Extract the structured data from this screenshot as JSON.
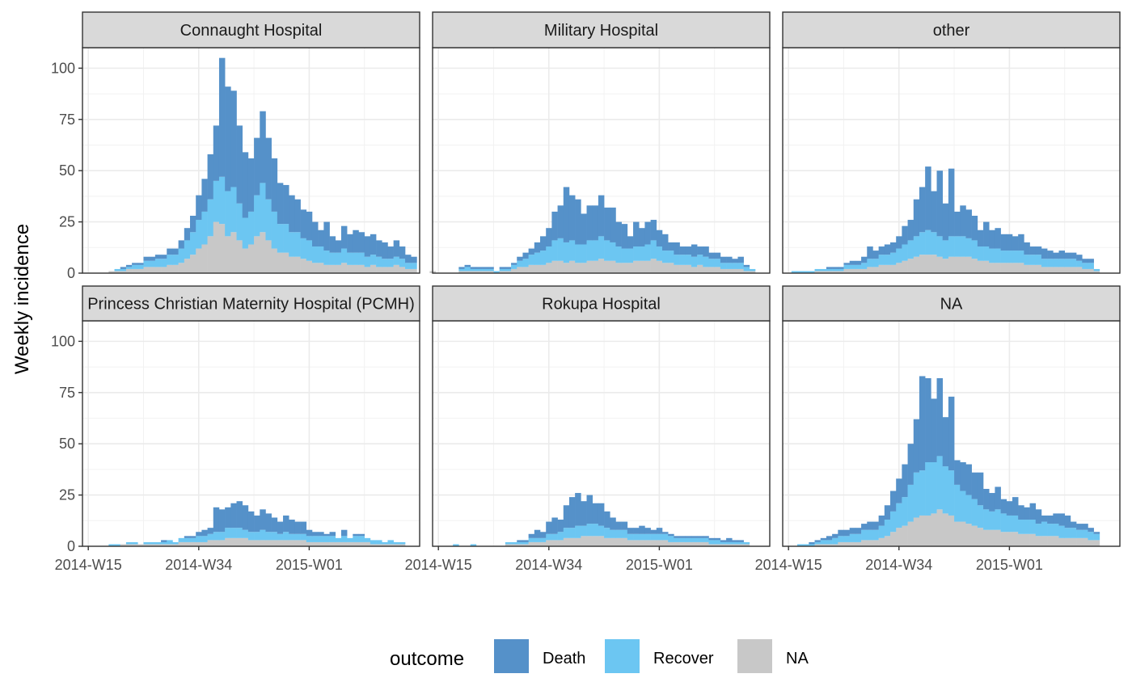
{
  "chart_data": {
    "type": "bar",
    "stacked": true,
    "ylabel": "Weekly incidence",
    "ylim": [
      0,
      110
    ],
    "y_ticks": [
      0,
      25,
      50,
      75,
      100
    ],
    "x_tick_labels": [
      "2014-W15",
      "2014-W34",
      "2015-W01"
    ],
    "x_tick_weeks": [
      0,
      19,
      38
    ],
    "x_range_weeks": [
      -1,
      57
    ],
    "grid": true,
    "legend": {
      "title": "outcome",
      "position": "bottom",
      "entries": [
        "Death",
        "Recover",
        "NA"
      ]
    },
    "colors": {
      "Death": "#5591C9",
      "Recover": "#6CC6F2",
      "NA": "#C8C8C8"
    },
    "series_names": [
      "Death",
      "Recover",
      "NA"
    ],
    "panels": [
      {
        "title": "Connaught Hospital",
        "start_week": 1,
        "NA": [
          0,
          0,
          0,
          1,
          1,
          1,
          2,
          2,
          2,
          3,
          3,
          3,
          3,
          4,
          4,
          5,
          7,
          9,
          12,
          14,
          18,
          25,
          24,
          18,
          20,
          16,
          12,
          14,
          18,
          20,
          16,
          12,
          10,
          10,
          8,
          8,
          7,
          6,
          5,
          5,
          4,
          4,
          4,
          5,
          4,
          4,
          4,
          3,
          4,
          3,
          3,
          3,
          4,
          3,
          2,
          2
        ],
        "Recover": [
          0,
          0,
          0,
          0,
          1,
          1,
          1,
          2,
          2,
          3,
          3,
          4,
          4,
          5,
          5,
          7,
          9,
          11,
          14,
          16,
          18,
          20,
          23,
          22,
          22,
          18,
          15,
          16,
          20,
          24,
          20,
          18,
          14,
          14,
          12,
          12,
          10,
          10,
          8,
          8,
          7,
          6,
          6,
          7,
          6,
          6,
          6,
          5,
          5,
          5,
          4,
          4,
          4,
          4,
          3,
          3
        ],
        "Death": [
          0,
          0,
          0,
          0,
          0,
          1,
          1,
          1,
          1,
          2,
          2,
          2,
          2,
          3,
          3,
          4,
          6,
          8,
          12,
          16,
          22,
          27,
          58,
          51,
          47,
          38,
          32,
          26,
          28,
          35,
          30,
          26,
          20,
          19,
          18,
          16,
          14,
          14,
          12,
          8,
          14,
          8,
          6,
          11,
          9,
          11,
          10,
          10,
          10,
          8,
          8,
          6,
          8,
          6,
          4,
          3
        ]
      },
      {
        "title": "Military Hospital",
        "start_week": -1,
        "NA": [
          1,
          0,
          0,
          0,
          0,
          1,
          1,
          1,
          1,
          1,
          1,
          0,
          1,
          1,
          2,
          3,
          3,
          4,
          4,
          4,
          5,
          6,
          6,
          5,
          6,
          5,
          5,
          6,
          6,
          7,
          6,
          6,
          5,
          5,
          5,
          6,
          6,
          6,
          7,
          6,
          5,
          5,
          4,
          4,
          4,
          3,
          4,
          3,
          3,
          3,
          2,
          2,
          2,
          2,
          1,
          1
        ],
        "Recover": [
          0,
          0,
          0,
          0,
          0,
          1,
          2,
          1,
          1,
          1,
          1,
          1,
          1,
          1,
          2,
          3,
          4,
          5,
          6,
          7,
          8,
          10,
          11,
          10,
          10,
          9,
          9,
          10,
          10,
          11,
          10,
          9,
          8,
          7,
          7,
          7,
          7,
          8,
          9,
          7,
          6,
          6,
          5,
          5,
          5,
          5,
          5,
          5,
          4,
          4,
          3,
          3,
          3,
          3,
          2,
          1
        ],
        "Death": [
          0,
          0,
          0,
          0,
          0,
          1,
          1,
          1,
          1,
          1,
          1,
          0,
          1,
          1,
          1,
          2,
          3,
          3,
          5,
          7,
          9,
          14,
          16,
          27,
          22,
          22,
          15,
          17,
          17,
          20,
          16,
          17,
          12,
          12,
          6,
          12,
          9,
          11,
          10,
          8,
          8,
          4,
          6,
          4,
          4,
          6,
          4,
          5,
          3,
          3,
          3,
          3,
          2,
          3,
          1,
          0
        ]
      },
      {
        "title": "other",
        "start_week": 1,
        "NA": [
          0,
          0,
          0,
          0,
          1,
          1,
          1,
          1,
          1,
          2,
          2,
          2,
          2,
          3,
          3,
          4,
          4,
          4,
          5,
          6,
          7,
          8,
          9,
          9,
          9,
          8,
          7,
          8,
          8,
          8,
          8,
          7,
          6,
          6,
          5,
          5,
          5,
          5,
          5,
          5,
          4,
          4,
          4,
          3,
          3,
          3,
          3,
          3,
          3,
          3,
          2,
          2,
          1
        ],
        "Recover": [
          1,
          1,
          1,
          1,
          1,
          1,
          1,
          1,
          1,
          2,
          2,
          2,
          3,
          4,
          4,
          5,
          5,
          6,
          7,
          8,
          9,
          10,
          11,
          12,
          11,
          10,
          9,
          10,
          10,
          10,
          9,
          9,
          7,
          7,
          7,
          7,
          6,
          6,
          6,
          6,
          5,
          5,
          5,
          4,
          4,
          4,
          4,
          4,
          4,
          3,
          3,
          3,
          1
        ],
        "Death": [
          0,
          0,
          0,
          0,
          0,
          0,
          1,
          1,
          1,
          1,
          2,
          2,
          3,
          6,
          4,
          4,
          5,
          5,
          6,
          9,
          10,
          18,
          22,
          31,
          20,
          32,
          18,
          33,
          12,
          15,
          14,
          12,
          8,
          12,
          9,
          10,
          8,
          8,
          7,
          8,
          6,
          4,
          4,
          5,
          4,
          3,
          4,
          3,
          3,
          3,
          2,
          2,
          0
        ]
      },
      {
        "title": "Princess Christian Maternity Hospital (PCMH)",
        "start_week": 1,
        "NA": [
          0,
          0,
          0,
          0,
          0,
          1,
          1,
          1,
          1,
          1,
          1,
          1,
          1,
          1,
          1,
          2,
          2,
          2,
          2,
          2,
          3,
          3,
          3,
          4,
          4,
          4,
          4,
          3,
          3,
          3,
          3,
          3,
          3,
          3,
          3,
          3,
          3,
          2,
          2,
          2,
          2,
          2,
          2,
          2,
          2,
          2,
          2,
          2,
          1,
          1,
          1,
          1,
          1,
          1
        ],
        "Recover": [
          0,
          0,
          0,
          1,
          1,
          0,
          1,
          1,
          0,
          1,
          1,
          1,
          1,
          2,
          1,
          2,
          2,
          2,
          3,
          3,
          3,
          4,
          4,
          5,
          5,
          5,
          4,
          4,
          4,
          5,
          4,
          4,
          3,
          4,
          3,
          3,
          3,
          3,
          3,
          3,
          3,
          3,
          2,
          3,
          2,
          3,
          3,
          2,
          2,
          2,
          1,
          2,
          1,
          1
        ],
        "Death": [
          0,
          0,
          0,
          0,
          0,
          0,
          0,
          0,
          0,
          0,
          0,
          0,
          1,
          0,
          0,
          0,
          1,
          1,
          2,
          3,
          3,
          12,
          11,
          10,
          12,
          13,
          12,
          10,
          8,
          10,
          9,
          7,
          6,
          8,
          7,
          6,
          6,
          3,
          2,
          2,
          1,
          2,
          0,
          3,
          0,
          1,
          1,
          0,
          0,
          0,
          0,
          0,
          0,
          0
        ]
      },
      {
        "title": "Rokupa Hospital",
        "start_week": 1,
        "NA": [
          0,
          0,
          0,
          0,
          0,
          0,
          0,
          0,
          0,
          0,
          0,
          1,
          1,
          1,
          1,
          2,
          2,
          2,
          3,
          3,
          3,
          4,
          4,
          4,
          5,
          5,
          5,
          5,
          4,
          4,
          4,
          4,
          3,
          3,
          3,
          3,
          3,
          3,
          3,
          2,
          2,
          2,
          2,
          2,
          2,
          2,
          1,
          1,
          1,
          1,
          1,
          1,
          1
        ],
        "Recover": [
          0,
          0,
          1,
          0,
          0,
          1,
          0,
          0,
          0,
          0,
          0,
          1,
          1,
          1,
          1,
          2,
          2,
          2,
          3,
          3,
          4,
          5,
          5,
          6,
          5,
          6,
          6,
          5,
          5,
          4,
          4,
          4,
          3,
          3,
          3,
          3,
          3,
          3,
          3,
          3,
          2,
          2,
          2,
          2,
          2,
          2,
          2,
          2,
          1,
          1,
          1,
          1,
          1
        ],
        "Death": [
          0,
          0,
          0,
          0,
          0,
          0,
          0,
          0,
          0,
          0,
          0,
          0,
          0,
          1,
          1,
          2,
          4,
          3,
          6,
          8,
          6,
          11,
          15,
          16,
          12,
          14,
          10,
          11,
          8,
          6,
          4,
          4,
          3,
          3,
          4,
          3,
          2,
          3,
          1,
          1,
          1,
          1,
          1,
          1,
          1,
          1,
          1,
          1,
          1,
          2,
          1,
          1,
          0
        ]
      },
      {
        "title": "NA",
        "start_week": 1,
        "NA": [
          0,
          0,
          0,
          0,
          1,
          1,
          1,
          1,
          2,
          2,
          2,
          2,
          3,
          3,
          3,
          4,
          5,
          7,
          9,
          10,
          12,
          14,
          15,
          15,
          16,
          18,
          16,
          15,
          12,
          12,
          11,
          10,
          9,
          8,
          8,
          8,
          7,
          7,
          7,
          6,
          6,
          6,
          5,
          5,
          5,
          5,
          4,
          4,
          4,
          4,
          4,
          3,
          3
        ],
        "Recover": [
          0,
          1,
          1,
          1,
          1,
          2,
          2,
          3,
          3,
          3,
          4,
          4,
          5,
          5,
          5,
          6,
          8,
          10,
          12,
          14,
          18,
          22,
          22,
          26,
          25,
          26,
          23,
          22,
          18,
          15,
          14,
          13,
          11,
          10,
          9,
          10,
          9,
          8,
          8,
          7,
          7,
          7,
          6,
          7,
          6,
          6,
          6,
          5,
          5,
          4,
          4,
          4,
          3
        ],
        "Death": [
          0,
          0,
          0,
          1,
          1,
          1,
          2,
          2,
          3,
          3,
          3,
          3,
          3,
          4,
          4,
          5,
          7,
          10,
          12,
          16,
          20,
          26,
          46,
          41,
          31,
          38,
          24,
          36,
          12,
          14,
          15,
          13,
          16,
          10,
          9,
          11,
          7,
          7,
          9,
          7,
          6,
          8,
          7,
          3,
          4,
          5,
          6,
          6,
          3,
          3,
          3,
          2,
          1
        ]
      }
    ]
  }
}
